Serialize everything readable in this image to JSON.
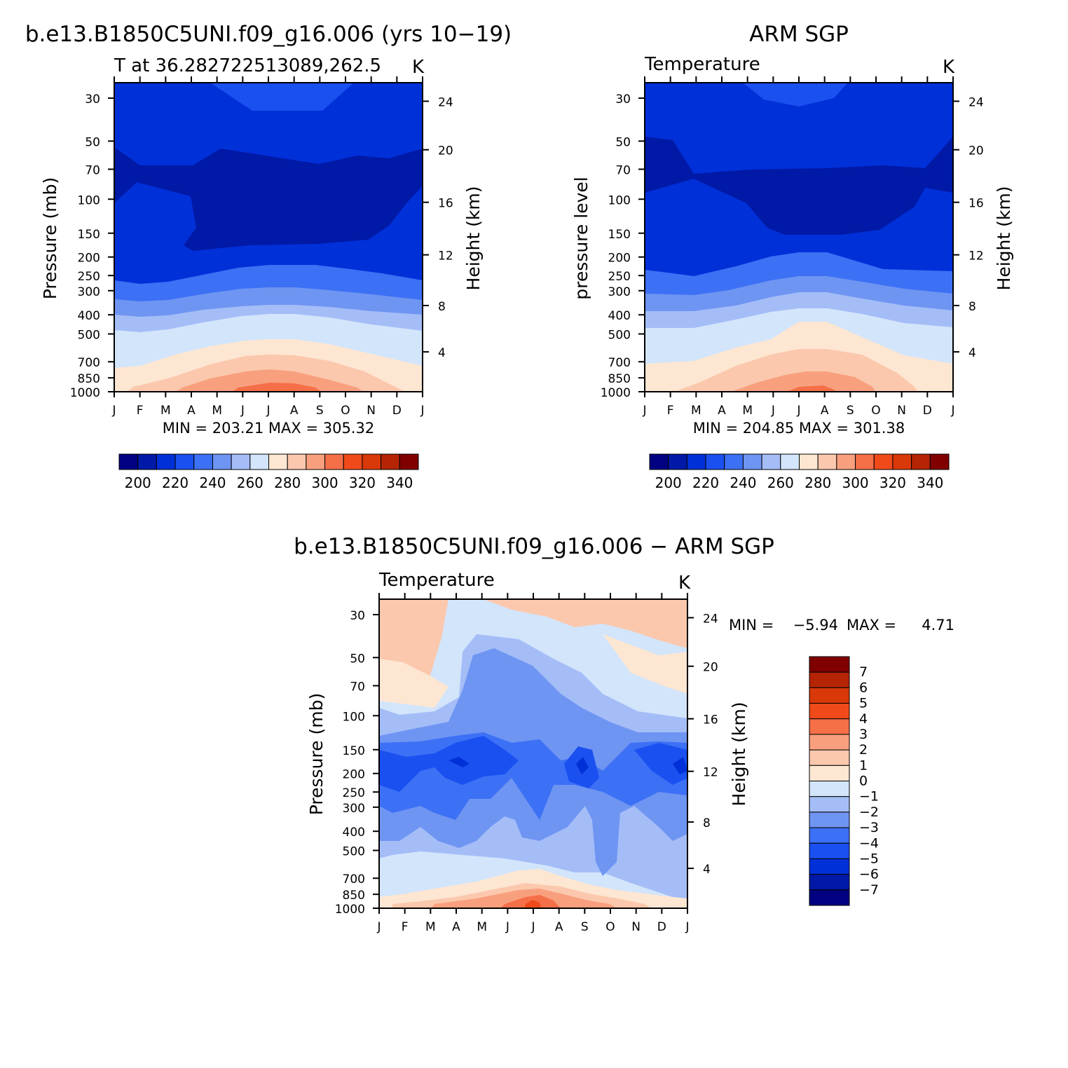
{
  "chart_data": [
    {
      "type": "heatmap",
      "panel": "model",
      "title": "b.e13.B1850C5UNI.f09_g16.006 (yrs 10−19)",
      "left_string": "T at 36.282722513089,262.5",
      "right_string": "K",
      "ylabel": "Pressure (mb)",
      "ylabel_right": "Height (km)",
      "stats": "MIN = 203.21  MAX = 305.32",
      "x_ticks": [
        "J",
        "F",
        "M",
        "A",
        "M",
        "J",
        "J",
        "A",
        "S",
        "O",
        "N",
        "D",
        "J"
      ],
      "y_ticks": [
        "30",
        "50",
        "70",
        "100",
        "150",
        "200",
        "250",
        "300",
        "400",
        "500",
        "700",
        "850",
        "1000"
      ],
      "height_ticks": [
        "24",
        "20",
        "16",
        "12",
        "8",
        "4"
      ],
      "colorbar": {
        "labels": [
          "200",
          "220",
          "240",
          "260",
          "280",
          "300",
          "320",
          "340"
        ],
        "colors": [
          "#000080",
          "#0019a6",
          "#0030d8",
          "#1a50f0",
          "#3c70f5",
          "#6e95f2",
          "#a5bdf7",
          "#d2e5fb",
          "#fde6d2",
          "#fbc8ad",
          "#f8a07e",
          "#f56f48",
          "#f04a1a",
          "#d93808",
          "#b42405",
          "#800000"
        ]
      },
      "layers": [
        {
          "value": "220",
          "color": "#1a50f0"
        },
        {
          "value": "210",
          "color": "#0030d8"
        },
        {
          "value": "<210",
          "color": "#0019a6"
        },
        {
          "value": "220-240",
          "color": "#3c70f5"
        },
        {
          "value": "240-250",
          "color": "#6e95f2"
        },
        {
          "value": "250-260",
          "color": "#a5bdf7"
        },
        {
          "value": "260-270",
          "color": "#d2e5fb"
        },
        {
          "value": "270-280",
          "color": "#fde6d2"
        },
        {
          "value": "280-290",
          "color": "#fbc8ad"
        },
        {
          "value": "290-300",
          "color": "#f8a07e"
        },
        {
          "value": ">300",
          "color": "#f56f48"
        }
      ]
    },
    {
      "type": "heatmap",
      "panel": "obs",
      "title": "ARM SGP",
      "left_string": "Temperature",
      "right_string": "K",
      "ylabel": "pressure level",
      "ylabel_right": "Height (km)",
      "stats": "MIN = 204.85  MAX = 301.38",
      "x_ticks": [
        "J",
        "F",
        "M",
        "A",
        "M",
        "J",
        "J",
        "A",
        "S",
        "O",
        "N",
        "D",
        "J"
      ],
      "y_ticks": [
        "30",
        "50",
        "70",
        "100",
        "150",
        "200",
        "250",
        "300",
        "400",
        "500",
        "700",
        "850",
        "1000"
      ],
      "height_ticks": [
        "24",
        "20",
        "16",
        "12",
        "8",
        "4"
      ],
      "colorbar": {
        "labels": [
          "200",
          "220",
          "240",
          "260",
          "280",
          "300",
          "320",
          "340"
        ],
        "colors": [
          "#000080",
          "#0019a6",
          "#0030d8",
          "#1a50f0",
          "#3c70f5",
          "#6e95f2",
          "#a5bdf7",
          "#d2e5fb",
          "#fde6d2",
          "#fbc8ad",
          "#f8a07e",
          "#f56f48",
          "#f04a1a",
          "#d93808",
          "#b42405",
          "#800000"
        ]
      }
    },
    {
      "type": "heatmap",
      "panel": "difference",
      "title": "b.e13.B1850C5UNI.f09_g16.006 − ARM SGP",
      "left_string": "Temperature",
      "right_string": "K",
      "ylabel": "Pressure (mb)",
      "ylabel_right": "Height (km)",
      "stats_min_label": "MIN =",
      "stats_min": "−5.94",
      "stats_max_label": "MAX =",
      "stats_max": "4.71",
      "x_ticks": [
        "J",
        "F",
        "M",
        "A",
        "M",
        "J",
        "J",
        "A",
        "S",
        "O",
        "N",
        "D",
        "J"
      ],
      "y_ticks": [
        "30",
        "50",
        "70",
        "100",
        "150",
        "200",
        "250",
        "300",
        "400",
        "500",
        "700",
        "850",
        "1000"
      ],
      "height_ticks": [
        "24",
        "20",
        "16",
        "12",
        "8",
        "4"
      ],
      "colorbar": {
        "labels": [
          "7",
          "6",
          "5",
          "4",
          "3",
          "2",
          "1",
          "0",
          "−1",
          "−2",
          "−3",
          "−4",
          "−5",
          "−6",
          "−7"
        ],
        "colors": [
          "#800000",
          "#b42405",
          "#d93808",
          "#f04a1a",
          "#f56f48",
          "#f8a07e",
          "#fbc8ad",
          "#fde6d2",
          "#d2e5fb",
          "#a5bdf7",
          "#6e95f2",
          "#3c70f5",
          "#1a50f0",
          "#0030d8",
          "#0019a6",
          "#000080"
        ]
      }
    }
  ]
}
